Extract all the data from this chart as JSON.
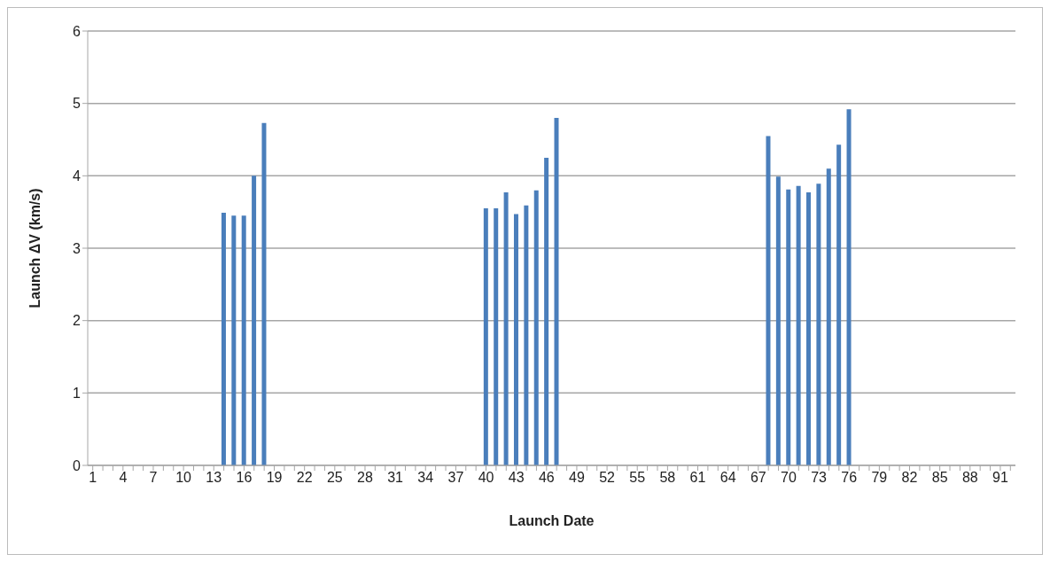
{
  "chart_data": {
    "type": "bar",
    "xlabel": "Launch Date",
    "ylabel": "Launch ΔV (km/s)",
    "categories": [
      "1",
      null,
      null,
      "4",
      null,
      null,
      "7",
      null,
      null,
      "10",
      null,
      null,
      "13",
      null,
      null,
      "16",
      null,
      null,
      "19",
      null,
      null,
      "22",
      null,
      null,
      "25",
      null,
      null,
      "28",
      null,
      null,
      "31",
      null,
      null,
      "34",
      null,
      null,
      "37",
      null,
      null,
      "40",
      null,
      null,
      "43",
      null,
      null,
      "46",
      null,
      null,
      "49",
      null,
      null,
      "52",
      null,
      null,
      "55",
      null,
      null,
      "58",
      null,
      null,
      "61",
      null,
      null,
      "64",
      null,
      null,
      "67",
      null,
      null,
      "70",
      null,
      null,
      "73",
      null,
      null,
      "76",
      null,
      null,
      "79",
      null,
      null,
      "82",
      null,
      null,
      "85",
      null,
      null,
      "88",
      null,
      null,
      "91",
      null
    ],
    "values": [
      null,
      null,
      null,
      null,
      null,
      null,
      null,
      null,
      null,
      null,
      null,
      null,
      null,
      3.49,
      3.45,
      3.45,
      4.0,
      4.73,
      null,
      null,
      null,
      null,
      null,
      null,
      null,
      null,
      null,
      null,
      null,
      null,
      null,
      null,
      null,
      null,
      null,
      null,
      null,
      null,
      null,
      3.55,
      3.55,
      3.77,
      3.47,
      3.59,
      3.8,
      4.25,
      4.8,
      null,
      null,
      null,
      null,
      null,
      null,
      null,
      null,
      null,
      null,
      null,
      null,
      null,
      null,
      null,
      null,
      null,
      null,
      null,
      null,
      4.55,
      3.99,
      3.81,
      3.86,
      3.77,
      3.89,
      4.1,
      4.43,
      4.92,
      null,
      null,
      null,
      null,
      null,
      null,
      null,
      null,
      null,
      null,
      null,
      null,
      null,
      null,
      null,
      null
    ],
    "color": "#4a7ebb",
    "ylim": [
      0,
      6
    ],
    "yticks": [
      0,
      1,
      2,
      3,
      4,
      5,
      6
    ],
    "grid": "y"
  }
}
